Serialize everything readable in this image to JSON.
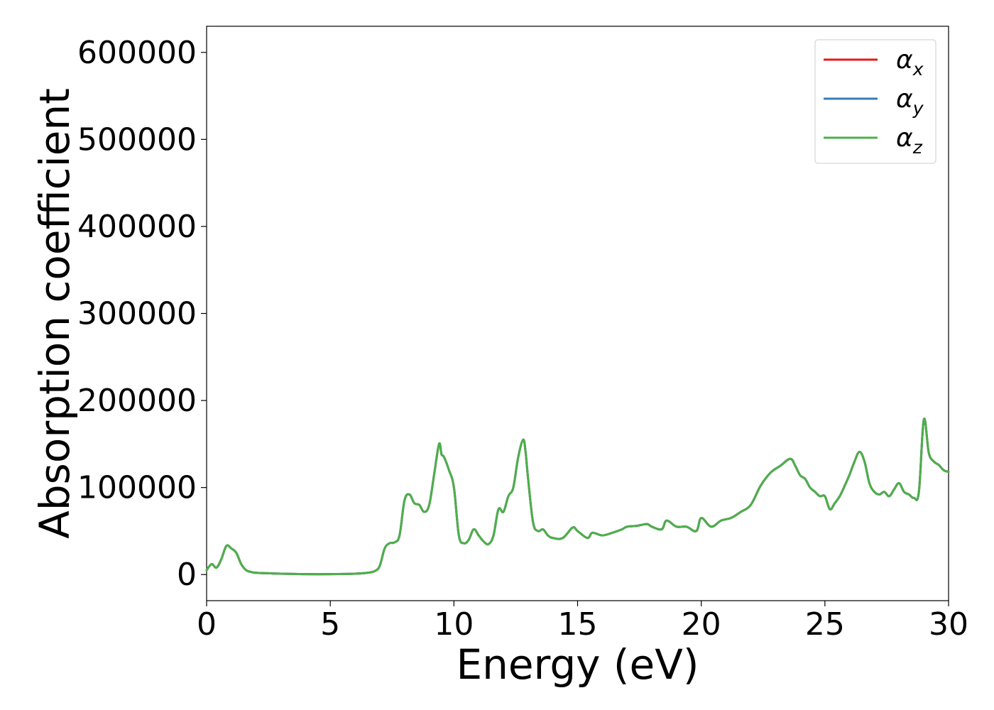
{
  "chart_data": {
    "type": "line",
    "xlabel": "Energy (eV)",
    "ylabel": "Absorption coefficient",
    "xlim": [
      0,
      30
    ],
    "ylim": [
      -30000,
      630000
    ],
    "xticks": [
      0,
      5,
      10,
      15,
      20,
      25,
      30
    ],
    "yticks": [
      0,
      100000,
      200000,
      300000,
      400000,
      500000,
      600000
    ],
    "grid": false,
    "legend": "top-right",
    "x": [
      0,
      0.2,
      0.4,
      0.6,
      0.8,
      1.0,
      1.2,
      1.4,
      1.6,
      1.8,
      2.0,
      2.5,
      3,
      4,
      5,
      6,
      6.5,
      6.8,
      7.0,
      7.2,
      7.4,
      7.6,
      7.8,
      8.0,
      8.2,
      8.4,
      8.6,
      8.8,
      9.0,
      9.2,
      9.4,
      9.5,
      9.6,
      9.8,
      10.0,
      10.2,
      10.4,
      10.6,
      10.8,
      11.0,
      11.2,
      11.4,
      11.6,
      11.8,
      12.0,
      12.2,
      12.4,
      12.6,
      12.8,
      12.9,
      13.0,
      13.2,
      13.4,
      13.6,
      13.8,
      14.0,
      14.4,
      14.8,
      15.0,
      15.4,
      15.6,
      16.0,
      16.4,
      16.8,
      17.0,
      17.4,
      17.8,
      18.0,
      18.4,
      18.6,
      19.0,
      19.4,
      19.8,
      20.0,
      20.4,
      20.8,
      21.2,
      21.6,
      22.0,
      22.4,
      22.8,
      23.2,
      23.6,
      23.8,
      24.0,
      24.2,
      24.4,
      24.6,
      24.8,
      25.0,
      25.2,
      25.4,
      25.6,
      25.8,
      26.0,
      26.2,
      26.4,
      26.6,
      26.8,
      27.0,
      27.2,
      27.4,
      27.6,
      27.8,
      28.0,
      28.2,
      28.4,
      28.6,
      28.8,
      29.0,
      29.2,
      29.4,
      29.6,
      29.8,
      30.0
    ],
    "series": [
      {
        "name": "α_x",
        "label_base": "α",
        "label_sub": "x",
        "color": "#e41a1c",
        "values": [
          5000,
          12000,
          8000,
          18000,
          33000,
          30000,
          25000,
          12000,
          5000,
          3000,
          2000,
          1500,
          1000,
          500,
          500,
          1000,
          2000,
          4000,
          10000,
          30000,
          36000,
          37000,
          45000,
          85000,
          92000,
          82000,
          80000,
          72000,
          80000,
          115000,
          150000,
          138000,
          135000,
          120000,
          100000,
          45000,
          36000,
          40000,
          52000,
          45000,
          38000,
          35000,
          45000,
          75000,
          72000,
          90000,
          100000,
          135000,
          155000,
          140000,
          110000,
          60000,
          50000,
          52000,
          45000,
          42000,
          42000,
          54000,
          50000,
          42000,
          48000,
          45000,
          48000,
          52000,
          55000,
          56000,
          58000,
          55000,
          52000,
          62000,
          55000,
          55000,
          50000,
          65000,
          55000,
          62000,
          65000,
          72000,
          80000,
          102000,
          117000,
          125000,
          133000,
          125000,
          114000,
          110000,
          100000,
          95000,
          90000,
          90000,
          75000,
          82000,
          90000,
          102000,
          115000,
          130000,
          141000,
          130000,
          105000,
          95000,
          92000,
          95000,
          90000,
          98000,
          105000,
          95000,
          92000,
          88000,
          95000,
          178000,
          140000,
          130000,
          126000,
          120000,
          118000
        ]
      },
      {
        "name": "α_y",
        "label_base": "α",
        "label_sub": "y",
        "color": "#377eb8",
        "values": [
          5000,
          12000,
          8000,
          18000,
          33000,
          30000,
          25000,
          12000,
          5000,
          3000,
          2000,
          1500,
          1000,
          500,
          500,
          1000,
          2000,
          4000,
          10000,
          30000,
          36000,
          37000,
          45000,
          85000,
          92000,
          82000,
          80000,
          72000,
          80000,
          115000,
          150000,
          138000,
          135000,
          120000,
          100000,
          45000,
          36000,
          40000,
          52000,
          45000,
          38000,
          35000,
          45000,
          75000,
          72000,
          90000,
          100000,
          135000,
          155000,
          140000,
          110000,
          60000,
          50000,
          52000,
          45000,
          42000,
          42000,
          54000,
          50000,
          42000,
          48000,
          45000,
          48000,
          52000,
          55000,
          56000,
          58000,
          55000,
          52000,
          62000,
          55000,
          55000,
          50000,
          65000,
          55000,
          62000,
          65000,
          72000,
          80000,
          102000,
          117000,
          125000,
          133000,
          125000,
          114000,
          110000,
          100000,
          95000,
          90000,
          90000,
          75000,
          82000,
          90000,
          102000,
          115000,
          130000,
          141000,
          130000,
          105000,
          95000,
          92000,
          95000,
          90000,
          98000,
          105000,
          95000,
          92000,
          88000,
          95000,
          178000,
          140000,
          130000,
          126000,
          120000,
          118000
        ]
      },
      {
        "name": "α_z",
        "label_base": "α",
        "label_sub": "z",
        "color": "#4daf4a",
        "values": [
          5000,
          12000,
          8000,
          18000,
          33000,
          30000,
          25000,
          12000,
          5000,
          3000,
          2000,
          1500,
          1000,
          500,
          500,
          1000,
          2000,
          4000,
          10000,
          30000,
          36000,
          37000,
          45000,
          85000,
          92000,
          82000,
          80000,
          72000,
          80000,
          115000,
          150000,
          138000,
          135000,
          120000,
          100000,
          45000,
          36000,
          40000,
          52000,
          45000,
          38000,
          35000,
          45000,
          75000,
          72000,
          90000,
          100000,
          135000,
          155000,
          140000,
          110000,
          60000,
          50000,
          52000,
          45000,
          42000,
          42000,
          54000,
          50000,
          42000,
          48000,
          45000,
          48000,
          52000,
          55000,
          56000,
          58000,
          55000,
          52000,
          62000,
          55000,
          55000,
          50000,
          65000,
          55000,
          62000,
          65000,
          72000,
          80000,
          102000,
          117000,
          125000,
          133000,
          125000,
          114000,
          110000,
          100000,
          95000,
          90000,
          90000,
          75000,
          82000,
          90000,
          102000,
          115000,
          130000,
          141000,
          130000,
          105000,
          95000,
          92000,
          95000,
          90000,
          98000,
          105000,
          95000,
          92000,
          88000,
          95000,
          178000,
          140000,
          130000,
          126000,
          120000,
          118000
        ]
      }
    ]
  }
}
